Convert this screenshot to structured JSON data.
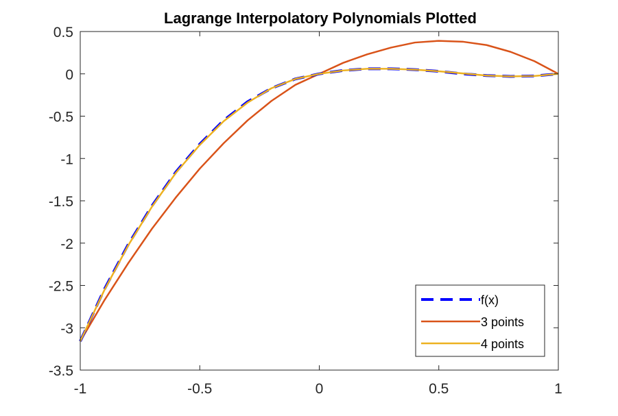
{
  "chart_data": {
    "type": "line",
    "title": "Lagrange Interpolatory Polynomials Plotted",
    "xlabel": "",
    "ylabel": "",
    "xlim": [
      -1,
      1
    ],
    "ylim": [
      -3.5,
      0.5
    ],
    "xticks": [
      -1,
      -0.5,
      0,
      0.5,
      1
    ],
    "xtick_labels": [
      "-1",
      "-0.5",
      "0",
      "0.5",
      "1"
    ],
    "yticks": [
      0.5,
      0,
      -0.5,
      -1,
      -1.5,
      -2,
      -2.5,
      -3,
      -3.5
    ],
    "ytick_labels": [
      "0.5",
      "0",
      "-0.5",
      "-1",
      "-1.5",
      "-2",
      "-2.5",
      "-3",
      "-3.5"
    ],
    "grid": false,
    "legend_position": "bottom-right",
    "series": [
      {
        "name": "f(x)",
        "color": "#0000ff",
        "style": "dashed",
        "x": [
          -1,
          -0.9,
          -0.8,
          -0.7,
          -0.6,
          -0.5,
          -0.4,
          -0.3,
          -0.2,
          -0.1,
          0,
          0.1,
          0.2,
          0.3,
          0.4,
          0.5,
          0.6,
          0.7,
          0.8,
          0.9,
          1
        ],
        "y": [
          -3.16,
          -2.55,
          -2.02,
          -1.56,
          -1.16,
          -0.83,
          -0.55,
          -0.33,
          -0.17,
          -0.06,
          0,
          0.04,
          0.06,
          0.06,
          0.05,
          0.03,
          0.0,
          -0.02,
          -0.03,
          -0.025,
          0
        ]
      },
      {
        "name": "3 points",
        "color": "#d95319",
        "style": "solid",
        "x": [
          -1,
          -0.9,
          -0.8,
          -0.7,
          -0.6,
          -0.5,
          -0.4,
          -0.3,
          -0.2,
          -0.1,
          0,
          0.1,
          0.2,
          0.3,
          0.4,
          0.5,
          0.6,
          0.7,
          0.8,
          0.9,
          1
        ],
        "y": [
          -3.16,
          -2.68,
          -2.24,
          -1.83,
          -1.46,
          -1.12,
          -0.82,
          -0.55,
          -0.32,
          -0.13,
          0,
          0.13,
          0.23,
          0.31,
          0.37,
          0.39,
          0.38,
          0.34,
          0.26,
          0.15,
          0
        ]
      },
      {
        "name": "4 points",
        "color": "#edb120",
        "style": "solid",
        "x": [
          -1,
          -0.9,
          -0.8,
          -0.7,
          -0.6,
          -0.5,
          -0.4,
          -0.3,
          -0.2,
          -0.1,
          0,
          0.1,
          0.2,
          0.3,
          0.4,
          0.5,
          0.6,
          0.7,
          0.8,
          0.9,
          1
        ],
        "y": [
          -3.16,
          -2.56,
          -2.03,
          -1.57,
          -1.17,
          -0.84,
          -0.56,
          -0.34,
          -0.17,
          -0.06,
          0,
          0.04,
          0.06,
          0.06,
          0.05,
          0.03,
          0.005,
          -0.02,
          -0.03,
          -0.025,
          0
        ]
      }
    ]
  }
}
